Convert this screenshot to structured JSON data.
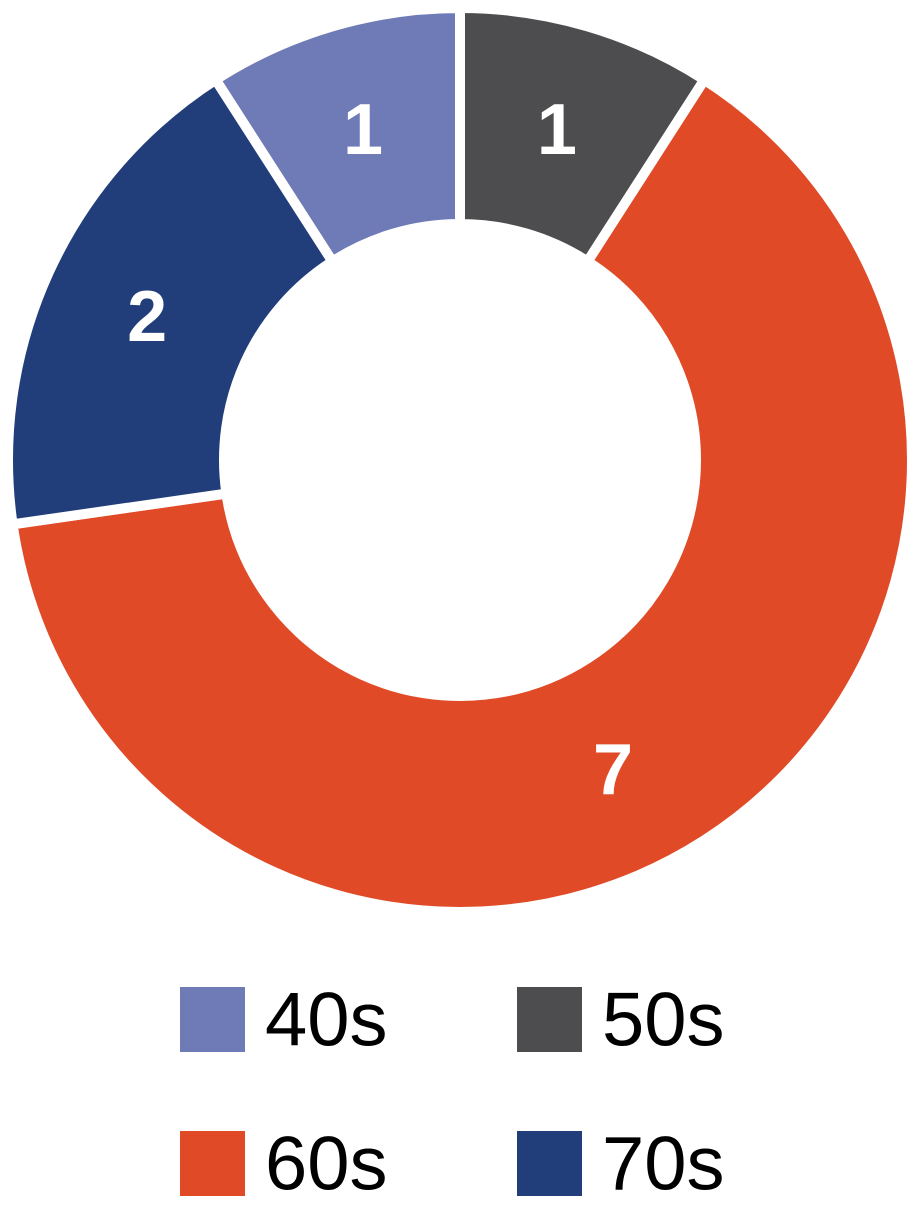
{
  "chart_data": {
    "type": "donut",
    "categories": [
      "40s",
      "50s",
      "60s",
      "70s"
    ],
    "values": [
      1,
      1,
      7,
      2
    ],
    "colors": [
      "#6f7bb7",
      "#4d4d4f",
      "#e04a27",
      "#213d7a"
    ]
  }
}
